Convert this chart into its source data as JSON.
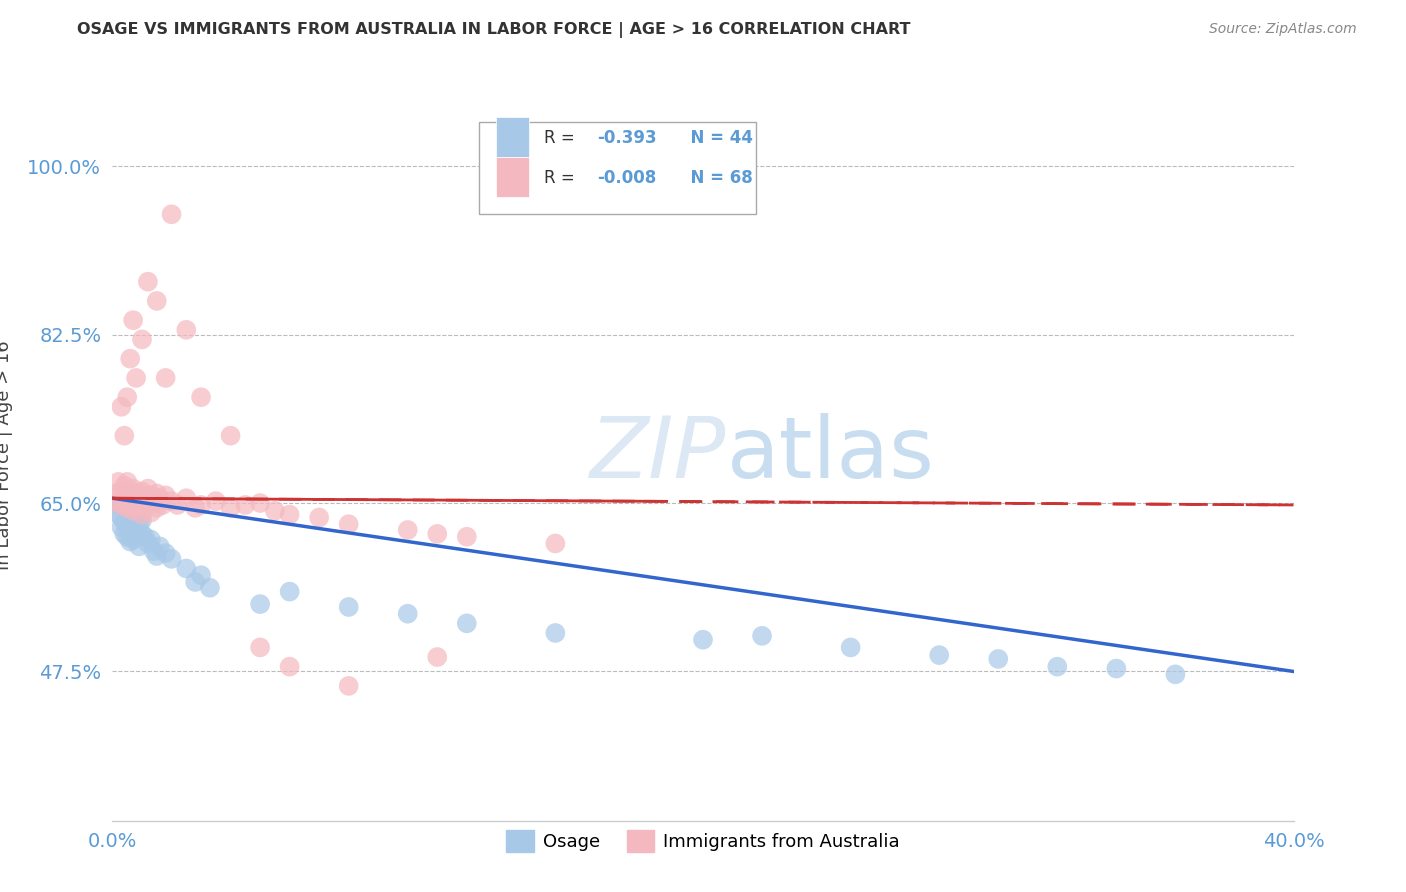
{
  "title": "OSAGE VS IMMIGRANTS FROM AUSTRALIA IN LABOR FORCE | AGE > 16 CORRELATION CHART",
  "source": "Source: ZipAtlas.com",
  "ylabel": "In Labor Force | Age > 16",
  "xlim": [
    0.0,
    0.4
  ],
  "ylim": [
    0.32,
    1.08
  ],
  "xticks": [
    0.0,
    0.4
  ],
  "xticklabels": [
    "0.0%",
    "40.0%"
  ],
  "yticks": [
    0.475,
    0.65,
    0.825,
    1.0
  ],
  "yticklabels": [
    "47.5%",
    "65.0%",
    "82.5%",
    "100.0%"
  ],
  "series1_label": "Osage",
  "series2_label": "Immigrants from Australia",
  "series1_color": "#a8c8e8",
  "series2_color": "#f4b8c0",
  "line1_color": "#3366cc",
  "line2_color": "#cc3333",
  "watermark": "ZIPatlas",
  "background_color": "#ffffff",
  "grid_color": "#bbbbbb",
  "title_color": "#333333",
  "axis_color": "#5b9bd5",
  "legend_text_color": "#333333",
  "legend_val_color": "#5b9bd5",
  "osage_x": [
    0.001,
    0.002,
    0.003,
    0.003,
    0.004,
    0.004,
    0.005,
    0.005,
    0.006,
    0.006,
    0.007,
    0.007,
    0.008,
    0.008,
    0.009,
    0.009,
    0.01,
    0.01,
    0.011,
    0.012,
    0.013,
    0.014,
    0.015,
    0.016,
    0.018,
    0.02,
    0.025,
    0.028,
    0.03,
    0.033,
    0.05,
    0.06,
    0.08,
    0.1,
    0.12,
    0.15,
    0.2,
    0.22,
    0.25,
    0.28,
    0.3,
    0.32,
    0.34,
    0.36
  ],
  "osage_y": [
    0.64,
    0.648,
    0.635,
    0.625,
    0.63,
    0.618,
    0.628,
    0.615,
    0.622,
    0.61,
    0.625,
    0.612,
    0.635,
    0.618,
    0.628,
    0.605,
    0.632,
    0.618,
    0.615,
    0.608,
    0.612,
    0.6,
    0.595,
    0.605,
    0.598,
    0.592,
    0.582,
    0.568,
    0.575,
    0.562,
    0.545,
    0.558,
    0.542,
    0.535,
    0.525,
    0.515,
    0.508,
    0.512,
    0.5,
    0.492,
    0.488,
    0.48,
    0.478,
    0.472
  ],
  "aus_x": [
    0.001,
    0.002,
    0.002,
    0.003,
    0.003,
    0.004,
    0.004,
    0.005,
    0.005,
    0.006,
    0.006,
    0.006,
    0.007,
    0.007,
    0.008,
    0.008,
    0.009,
    0.009,
    0.01,
    0.01,
    0.01,
    0.011,
    0.011,
    0.012,
    0.012,
    0.013,
    0.013,
    0.014,
    0.015,
    0.015,
    0.016,
    0.017,
    0.018,
    0.02,
    0.022,
    0.025,
    0.028,
    0.03,
    0.035,
    0.04,
    0.045,
    0.05,
    0.055,
    0.06,
    0.07,
    0.08,
    0.1,
    0.11,
    0.12,
    0.15,
    0.003,
    0.004,
    0.005,
    0.006,
    0.007,
    0.008,
    0.01,
    0.012,
    0.015,
    0.018,
    0.02,
    0.025,
    0.03,
    0.04,
    0.05,
    0.06,
    0.08,
    0.11
  ],
  "aus_y": [
    0.66,
    0.672,
    0.65,
    0.66,
    0.648,
    0.668,
    0.655,
    0.645,
    0.672,
    0.66,
    0.655,
    0.648,
    0.665,
    0.642,
    0.658,
    0.645,
    0.66,
    0.648,
    0.662,
    0.652,
    0.638,
    0.658,
    0.645,
    0.665,
    0.648,
    0.658,
    0.64,
    0.652,
    0.66,
    0.645,
    0.655,
    0.648,
    0.658,
    0.652,
    0.648,
    0.655,
    0.645,
    0.648,
    0.652,
    0.645,
    0.648,
    0.65,
    0.642,
    0.638,
    0.635,
    0.628,
    0.622,
    0.618,
    0.615,
    0.608,
    0.75,
    0.72,
    0.76,
    0.8,
    0.84,
    0.78,
    0.82,
    0.88,
    0.86,
    0.78,
    0.95,
    0.83,
    0.76,
    0.72,
    0.5,
    0.48,
    0.46,
    0.49
  ]
}
